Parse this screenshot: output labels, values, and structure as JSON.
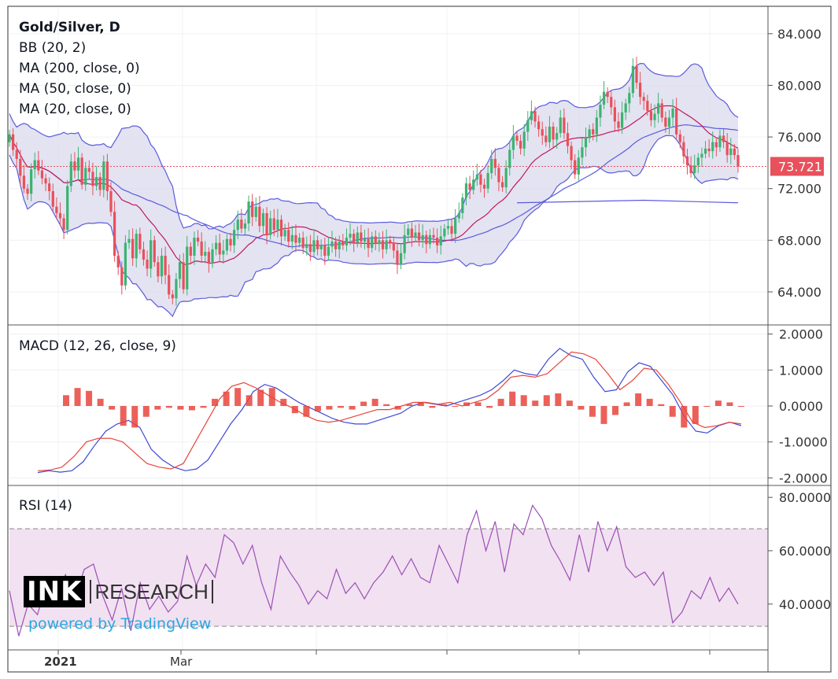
{
  "chart_data": [
    {
      "type": "candlestick",
      "title": "Gold/Silver, D",
      "indicators": [
        "BB (20, 2)",
        "MA (200, close, 0)",
        "MA (50, close, 0)",
        "MA (20, close, 0)"
      ],
      "ylim": [
        61.5,
        86
      ],
      "yticks": [
        "84.000",
        "80.000",
        "76.000",
        "72.000",
        "68.000",
        "64.000"
      ],
      "ytick_values": [
        84,
        80,
        76,
        72,
        68,
        64
      ],
      "last_price": 73.721,
      "last_price_label": "73.721",
      "colors": {
        "up": "#3cb371",
        "down": "#e8505b",
        "bands": "#5b5bdc",
        "band_fill": "#d9d9ee",
        "ma20": "#c2185b",
        "last_line": "#e8505b"
      },
      "close": [
        76.2,
        75.0,
        74.3,
        73.0,
        72.0,
        71.6,
        73.5,
        74.2,
        73.4,
        72.8,
        72.4,
        71.8,
        70.6,
        70.1,
        69.7,
        68.8,
        72.2,
        74.1,
        73.4,
        74.4,
        72.3,
        73.6,
        73.3,
        72.2,
        72.9,
        71.9,
        74.1,
        71.8,
        70.2,
        66.8,
        65.9,
        64.5,
        67.8,
        68.1,
        66.6,
        68.5,
        67.3,
        66.5,
        65.8,
        68.0,
        66.3,
        65.2,
        66.8,
        65.3,
        63.8,
        63.5,
        65.0,
        66.3,
        64.2,
        67.5,
        66.8,
        68.2,
        67.9,
        66.8,
        67.1,
        66.2,
        67.3,
        67.8,
        66.9,
        67.2,
        68.1,
        67.6,
        68.8,
        69.6,
        68.9,
        69.3,
        71.0,
        69.8,
        70.6,
        69.1,
        70.1,
        68.4,
        69.7,
        68.8,
        69.6,
        68.3,
        68.8,
        67.9,
        68.4,
        67.8,
        68.2,
        67.4,
        67.7,
        67.1,
        68.0,
        67.3,
        67.6,
        66.8,
        67.5,
        67.9,
        67.3,
        67.9,
        67.6,
        68.2,
        68.5,
        67.8,
        68.6,
        67.9,
        68.1,
        67.4,
        68.3,
        67.7,
        68.0,
        67.3,
        68.0,
        67.8,
        67.2,
        66.1,
        67.0,
        68.4,
        68.9,
        68.2,
        68.6,
        68.0,
        68.4,
        67.7,
        68.4,
        68.2,
        67.6,
        68.3,
        68.9,
        69.1,
        68.5,
        69.7,
        70.1,
        71.3,
        72.4,
        71.9,
        72.7,
        73.1,
        72.3,
        72.0,
        73.2,
        74.3,
        73.6,
        72.5,
        72.1,
        73.6,
        75.0,
        76.1,
        75.7,
        75.1,
        76.4,
        77.3,
        78.0,
        77.2,
        76.6,
        76.1,
        75.6,
        76.8,
        75.8,
        76.3,
        77.5,
        76.3,
        75.3,
        74.2,
        73.1,
        74.4,
        75.2,
        75.9,
        76.6,
        76.2,
        77.5,
        78.5,
        79.5,
        79.1,
        78.3,
        77.2,
        76.7,
        77.9,
        78.6,
        79.4,
        81.5,
        80.2,
        79.1,
        78.8,
        78.0,
        77.3,
        77.8,
        78.6,
        77.5,
        76.8,
        77.5,
        78.2,
        76.2,
        75.6,
        74.5,
        73.8,
        73.2,
        73.8,
        74.4,
        74.7,
        75.1,
        74.9,
        75.6,
        75.2,
        76.1,
        75.6,
        74.6,
        75.1,
        74.6,
        73.7
      ],
      "panes": [
        {
          "type": "line",
          "title": "MACD (12, 26, close, 9)",
          "yticks": [
            "2.0000",
            "1.0000",
            "0.0000",
            "-1.0000",
            "-2.0000"
          ],
          "ytick_values": [
            2,
            1,
            0,
            -1,
            -2
          ],
          "ylim": [
            -2.1,
            2.1
          ],
          "series": [
            {
              "values": [
                -1.85,
                -1.8,
                -1.84,
                -1.8,
                -1.55,
                -1.1,
                -0.7,
                -0.5,
                -0.4,
                -0.6,
                -1.2,
                -1.5,
                -1.7,
                -1.8,
                -1.75,
                -1.5,
                -1.0,
                -0.5,
                -0.1,
                0.4,
                0.6,
                0.5,
                0.3,
                0.1,
                -0.05,
                -0.2,
                -0.35,
                -0.45,
                -0.5,
                -0.5,
                -0.4,
                -0.3,
                -0.2,
                0.0,
                0.1,
                0.05,
                0.0,
                0.1,
                0.2,
                0.3,
                0.45,
                0.7,
                1.0,
                0.9,
                0.85,
                1.3,
                1.6,
                1.4,
                1.3,
                0.8,
                0.4,
                0.45,
                0.95,
                1.2,
                1.1,
                0.7,
                0.3,
                -0.3,
                -0.7,
                -0.75,
                -0.55,
                -0.45,
                -0.55
              ]
            },
            {
              "values": [
                -1.8,
                -1.78,
                -1.7,
                -1.4,
                -1.0,
                -0.9,
                -0.9,
                -1.0,
                -1.3,
                -1.6,
                -1.7,
                -1.75,
                -1.6,
                -1.0,
                -0.4,
                0.2,
                0.55,
                0.65,
                0.5,
                0.3,
                0.1,
                -0.05,
                -0.25,
                -0.4,
                -0.45,
                -0.4,
                -0.3,
                -0.2,
                -0.1,
                -0.1,
                0.0,
                0.1,
                0.1,
                0.05,
                0.1,
                0.0,
                0.1,
                0.2,
                0.45,
                0.8,
                0.85,
                0.8,
                0.9,
                1.2,
                1.5,
                1.45,
                1.3,
                0.9,
                0.45,
                0.7,
                1.05,
                1.0,
                0.6,
                0.1,
                -0.45,
                -0.6,
                -0.55,
                -0.45,
                -0.5
              ]
            },
            {
              "type": "histogram",
              "values": [
                0.3,
                0.5,
                0.42,
                0.2,
                -0.1,
                -0.55,
                -0.6,
                -0.3,
                -0.1,
                -0.05,
                -0.1,
                -0.12,
                -0.05,
                0.2,
                0.4,
                0.5,
                0.3,
                0.45,
                0.5,
                0.2,
                -0.2,
                -0.3,
                -0.15,
                -0.1,
                -0.05,
                -0.1,
                0.12,
                0.2,
                0.05,
                -0.1,
                0.05,
                0.1,
                -0.05,
                0.05,
                0.0,
                0.1,
                0.1,
                -0.05,
                0.2,
                0.4,
                0.3,
                0.15,
                0.3,
                0.35,
                0.15,
                -0.1,
                -0.3,
                -0.5,
                -0.25,
                0.1,
                0.35,
                0.2,
                0.05,
                -0.3,
                -0.6,
                -0.5,
                0.0,
                0.15,
                0.1,
                0.0
              ]
            }
          ]
        },
        {
          "type": "line",
          "title": "RSI (14)",
          "yticks": [
            "80.0000",
            "60.0000",
            "40.0000"
          ],
          "ytick_values": [
            80,
            60,
            40
          ],
          "ylim": [
            24,
            83
          ],
          "levels": [
            70,
            30
          ],
          "series": [
            {
              "values": [
                45,
                28,
                40,
                36,
                48,
                43,
                51,
                42,
                53,
                55,
                43,
                34,
                46,
                30,
                48,
                38,
                43,
                37,
                41,
                58,
                47,
                55,
                50,
                66,
                63,
                55,
                62,
                48,
                38,
                58,
                52,
                47,
                40,
                45,
                42,
                53,
                44,
                48,
                42,
                48,
                52,
                58,
                51,
                57,
                50,
                48,
                62,
                55,
                48,
                66,
                75,
                60,
                71,
                52,
                70,
                66,
                77,
                72,
                62,
                56,
                49,
                66,
                52,
                71,
                60,
                69,
                54,
                50,
                52,
                47,
                52,
                33,
                37,
                45,
                42,
                50,
                41,
                46,
                40
              ]
            }
          ],
          "colors": {
            "line": "#9c4fb5",
            "band": "#f1e1f1",
            "level": "#888888"
          }
        },
        {
          "type": "axis",
          "x_labels": [
            "2021",
            "Mar"
          ]
        }
      ]
    }
  ],
  "watermark": {
    "ink": "INK",
    "research": "RESEARCH",
    "powered": "powered by TradingView"
  }
}
